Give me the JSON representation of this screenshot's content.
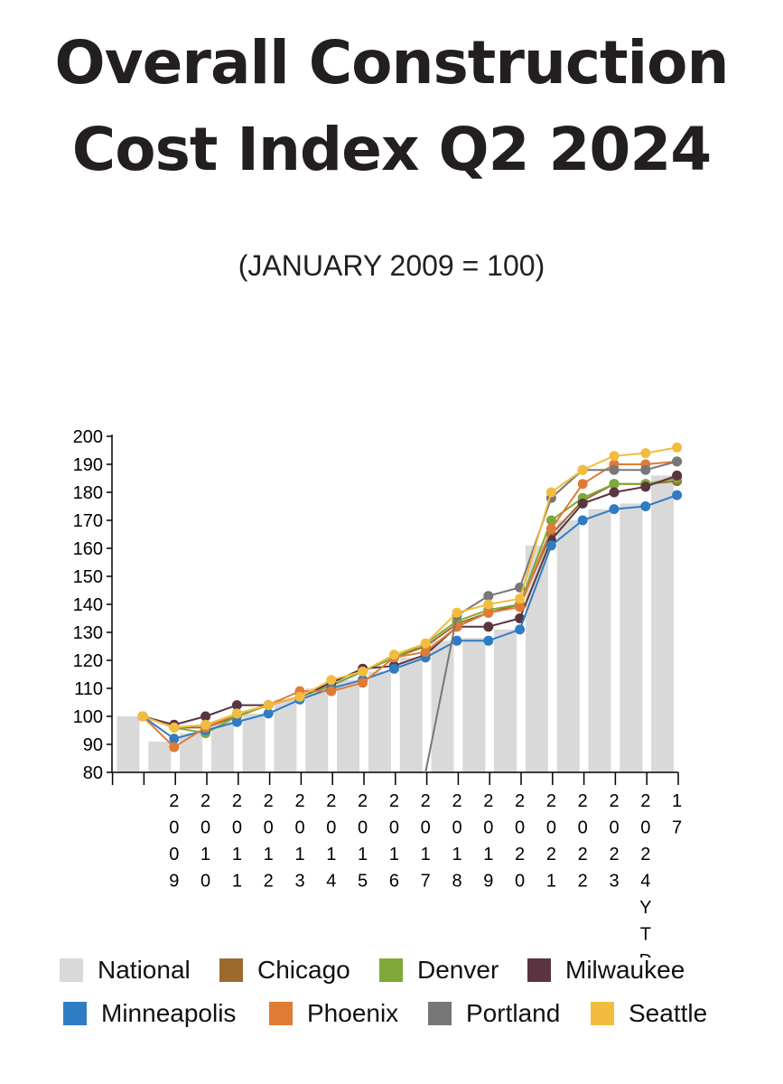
{
  "title_line1": "Overall Construction",
  "title_line2": "Cost Index Q2 2024",
  "subtitle": "(JANUARY 2009 = 100)",
  "chart_data": {
    "type": "bar",
    "title": "Overall Construction Cost Index Q2 2024",
    "subtitle": "(JANUARY 2009 = 100)",
    "xlabel": "",
    "ylabel": "",
    "ylim": [
      80,
      200
    ],
    "yticks": [
      80,
      90,
      100,
      110,
      120,
      130,
      140,
      150,
      160,
      170,
      180,
      190,
      200
    ],
    "grid": false,
    "legend_position": "bottom",
    "categories": [
      "",
      "2009",
      "2010",
      "2011",
      "2012",
      "2013",
      "2014",
      "2015",
      "2016",
      "2017",
      "2018",
      "2019",
      "2020",
      "2021",
      "2022",
      "2023",
      "2024 YTD",
      "17"
    ],
    "series": [
      {
        "name": "National",
        "type": "bar",
        "color": "#d9d9d9",
        "values": [
          100,
          91,
          94,
          98,
          101,
          106,
          110,
          113,
          116,
          121,
          127,
          128,
          131,
          161,
          170,
          174,
          176,
          186
        ]
      },
      {
        "name": "Chicago",
        "type": "line",
        "color": "#9c6a2c",
        "values": [
          100,
          96,
          96,
          100,
          104,
          107,
          111,
          116,
          121,
          125,
          133,
          137,
          140,
          165,
          177,
          183,
          183,
          184
        ]
      },
      {
        "name": "Denver",
        "type": "line",
        "color": "#7ea83a",
        "values": [
          100,
          96,
          94,
          100,
          104,
          107,
          111,
          116,
          121,
          126,
          134,
          138,
          140,
          170,
          178,
          183,
          183,
          185
        ]
      },
      {
        "name": "Milwaukee",
        "type": "line",
        "color": "#5a3440",
        "values": [
          100,
          97,
          100,
          104,
          104,
          107,
          112,
          117,
          118,
          122,
          132,
          132,
          135,
          163,
          176,
          180,
          182,
          186
        ]
      },
      {
        "name": "Minneapolis",
        "type": "line",
        "color": "#2f7cc4",
        "values": [
          100,
          92,
          95,
          98,
          101,
          106,
          110,
          113,
          117,
          121,
          127,
          127,
          131,
          161,
          170,
          174,
          175,
          179
        ]
      },
      {
        "name": "Phoenix",
        "type": "line",
        "color": "#e07b36",
        "values": [
          100,
          89,
          96,
          101,
          104,
          109,
          109,
          112,
          121,
          123,
          132,
          137,
          139,
          167,
          183,
          190,
          190,
          191
        ]
      },
      {
        "name": "Portland",
        "type": "line",
        "color": "#777777",
        "values": [
          null,
          null,
          null,
          null,
          null,
          null,
          null,
          null,
          null,
          60,
          136,
          143,
          146,
          178,
          188,
          188,
          188,
          191
        ]
      },
      {
        "name": "Seattle",
        "type": "line",
        "color": "#f2bd3e",
        "values": [
          100,
          96,
          97,
          101,
          104,
          107,
          113,
          116,
          122,
          126,
          137,
          140,
          142,
          180,
          188,
          193,
          194,
          196
        ]
      }
    ]
  }
}
